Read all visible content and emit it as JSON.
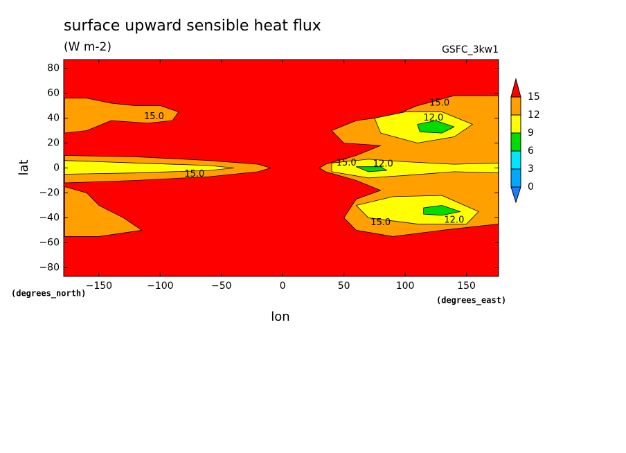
{
  "chart_data": {
    "type": "contour",
    "title": "surface upward sensible heat flux",
    "subtitle": "(W m-2)",
    "model": "GSFC_3kw1",
    "x_label": "lon",
    "y_label": "lat",
    "x_units": "(degrees_east)",
    "y_units": "(degrees_north)",
    "xlim": [
      -178.75,
      176.25
    ],
    "ylim": [
      -87,
      87
    ],
    "xticks": [
      {
        "value": -150,
        "label": "−150"
      },
      {
        "value": -100,
        "label": "−100"
      },
      {
        "value": -50,
        "label": "−50"
      },
      0,
      50,
      100,
      150
    ],
    "yticks": [
      {
        "value": -80,
        "label": "−80"
      },
      {
        "value": -60,
        "label": "−60"
      },
      {
        "value": -40,
        "label": "−40"
      },
      {
        "value": -20,
        "label": "−20"
      },
      0,
      20,
      40,
      60,
      80
    ],
    "levels": [
      0,
      3,
      6,
      9,
      12,
      15
    ],
    "colors": [
      "#1e7cff",
      "#00a8ff",
      "#00e6ff",
      "#00dc00",
      "#ffff00",
      "#ffa000",
      "#ff0000"
    ],
    "regions": [
      {
        "level": 12,
        "points": [
          [
            -178,
            56
          ],
          [
            -160,
            56
          ],
          [
            -140,
            52
          ],
          [
            -120,
            50
          ],
          [
            -100,
            50
          ],
          [
            -85,
            45
          ],
          [
            -90,
            38
          ],
          [
            -110,
            36
          ],
          [
            -140,
            38
          ],
          [
            -160,
            30
          ],
          [
            -178,
            28
          ]
        ]
      },
      {
        "level": 12,
        "points": [
          [
            -178,
            10
          ],
          [
            -120,
            9
          ],
          [
            -60,
            6
          ],
          [
            -20,
            3
          ],
          [
            -10,
            0
          ],
          [
            -20,
            -3
          ],
          [
            -60,
            -7
          ],
          [
            -120,
            -10
          ],
          [
            -178,
            -12
          ]
        ]
      },
      {
        "level": 12,
        "points": [
          [
            -178,
            -15
          ],
          [
            -160,
            -20
          ],
          [
            -150,
            -30
          ],
          [
            -130,
            -40
          ],
          [
            -115,
            -50
          ],
          [
            -150,
            -55
          ],
          [
            -178,
            -55
          ]
        ]
      },
      {
        "level": 12,
        "points": [
          [
            176,
            58
          ],
          [
            140,
            58
          ],
          [
            110,
            50
          ],
          [
            90,
            42
          ],
          [
            60,
            38
          ],
          [
            40,
            30
          ],
          [
            50,
            20
          ],
          [
            80,
            18
          ],
          [
            60,
            10
          ],
          [
            35,
            3
          ],
          [
            30,
            0
          ],
          [
            35,
            -3
          ],
          [
            60,
            -10
          ],
          [
            80,
            -18
          ],
          [
            60,
            -25
          ],
          [
            50,
            -40
          ],
          [
            60,
            -50
          ],
          [
            90,
            -55
          ],
          [
            130,
            -50
          ],
          [
            176,
            -45
          ]
        ]
      },
      {
        "level": 9,
        "points": [
          [
            -178,
            6
          ],
          [
            -120,
            4
          ],
          [
            -60,
            2
          ],
          [
            -40,
            0
          ],
          [
            -60,
            -2
          ],
          [
            -120,
            -4
          ],
          [
            -178,
            -5
          ]
        ]
      },
      {
        "level": 9,
        "points": [
          [
            40,
            4
          ],
          [
            70,
            7
          ],
          [
            100,
            5
          ],
          [
            140,
            3
          ],
          [
            176,
            4
          ],
          [
            176,
            -4
          ],
          [
            140,
            -3
          ],
          [
            100,
            -6
          ],
          [
            70,
            -8
          ],
          [
            40,
            -3
          ]
        ]
      },
      {
        "level": 9,
        "points": [
          [
            75,
            40
          ],
          [
            100,
            45
          ],
          [
            130,
            45
          ],
          [
            155,
            35
          ],
          [
            140,
            25
          ],
          [
            110,
            20
          ],
          [
            80,
            28
          ]
        ]
      },
      {
        "level": 9,
        "points": [
          [
            60,
            -30
          ],
          [
            90,
            -23
          ],
          [
            130,
            -22
          ],
          [
            160,
            -35
          ],
          [
            150,
            -45
          ],
          [
            110,
            -45
          ],
          [
            70,
            -40
          ]
        ]
      },
      {
        "level": 6,
        "points": [
          [
            110,
            35
          ],
          [
            125,
            38
          ],
          [
            140,
            33
          ],
          [
            130,
            28
          ],
          [
            112,
            29
          ]
        ]
      },
      {
        "level": 6,
        "points": [
          [
            60,
            1
          ],
          [
            80,
            1
          ],
          [
            85,
            -2
          ],
          [
            70,
            -3
          ]
        ]
      },
      {
        "level": 6,
        "points": [
          [
            115,
            -32
          ],
          [
            130,
            -30
          ],
          [
            145,
            -35
          ],
          [
            130,
            -38
          ],
          [
            115,
            -37
          ]
        ]
      }
    ],
    "annotations": [
      {
        "text": "15.0",
        "lon": -105,
        "lat": 41
      },
      {
        "text": "15.0",
        "lon": -72,
        "lat": -5
      },
      {
        "text": "15.0",
        "lon": 52,
        "lat": 4
      },
      {
        "text": "12.0",
        "lon": 82,
        "lat": 3
      },
      {
        "text": "15.0",
        "lon": 128,
        "lat": 52
      },
      {
        "text": "12.0",
        "lon": 123,
        "lat": 40
      },
      {
        "text": "15.0",
        "lon": 80,
        "lat": -44
      },
      {
        "text": "12.0",
        "lon": 140,
        "lat": -42
      }
    ]
  }
}
